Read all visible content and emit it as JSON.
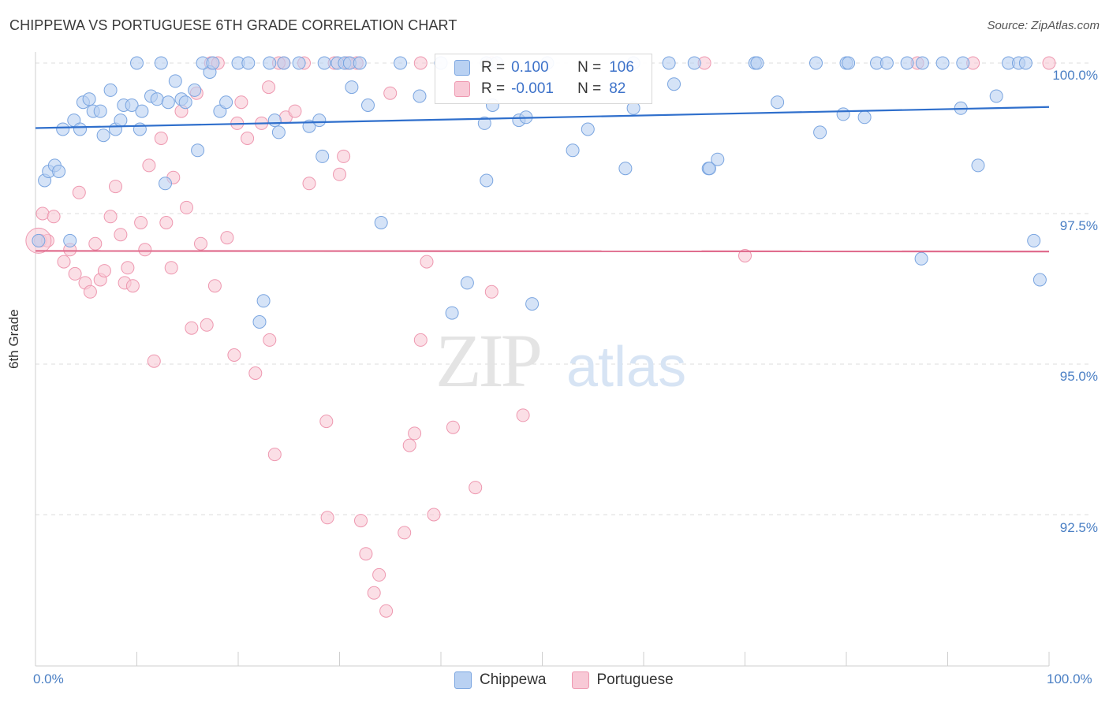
{
  "title": "CHIPPEWA VS PORTUGUESE 6TH GRADE CORRELATION CHART",
  "source": "Source: ZipAtlas.com",
  "watermark": {
    "zip": "ZIP",
    "atlas": "atlas"
  },
  "legend": {
    "r_label": "R =",
    "n_label": "N =",
    "rows": [
      {
        "name": "Chippewa",
        "r": "0.100",
        "n": "106",
        "color": "#a9c6ef"
      },
      {
        "name": "Portuguese",
        "r": "-0.001",
        "n": "82",
        "color": "#f5b8c8"
      }
    ]
  },
  "colors": {
    "chippewa_fill": "#b9d1f2",
    "chippewa_stroke": "#7aa5e0",
    "chippewa_line": "#2f6fcc",
    "portuguese_fill": "#f8c9d6",
    "portuguese_stroke": "#ee98b0",
    "portuguese_line": "#e06d8e",
    "tick_text": "#4a7fc4",
    "grid": "#dcdcdc"
  },
  "chart_data": {
    "type": "scatter",
    "title": "CHIPPEWA VS PORTUGUESE 6TH GRADE CORRELATION CHART",
    "xlabel": "",
    "ylabel": "6th Grade",
    "xlim": [
      0,
      100
    ],
    "ylim": [
      90.5,
      100.4
    ],
    "x_tick_labels": [
      "0.0%",
      "100.0%"
    ],
    "y_ticks": [
      {
        "value": 100.0,
        "label": "100.0%"
      },
      {
        "value": 97.5,
        "label": "97.5%"
      },
      {
        "value": 95.0,
        "label": "95.0%"
      },
      {
        "value": 92.5,
        "label": "92.5%"
      }
    ],
    "grid": "horizontal dashed",
    "legend_position": "top-center",
    "series": [
      {
        "name": "Chippewa",
        "trend": [
          [
            0,
            98.92
          ],
          [
            100,
            99.27
          ]
        ],
        "points": [
          [
            0.3,
            97.05
          ],
          [
            0.9,
            98.05
          ],
          [
            1.3,
            98.2
          ],
          [
            1.9,
            98.3
          ],
          [
            2.3,
            98.2
          ],
          [
            2.7,
            98.9
          ],
          [
            3.4,
            97.05
          ],
          [
            3.8,
            99.05
          ],
          [
            4.4,
            98.9
          ],
          [
            4.7,
            99.35
          ],
          [
            5.3,
            99.4
          ],
          [
            5.7,
            99.2
          ],
          [
            6.4,
            99.2
          ],
          [
            6.7,
            98.8
          ],
          [
            7.4,
            99.55
          ],
          [
            7.9,
            98.9
          ],
          [
            8.4,
            99.05
          ],
          [
            8.7,
            99.3
          ],
          [
            9.5,
            99.3
          ],
          [
            10.3,
            98.9
          ],
          [
            10.5,
            99.2
          ],
          [
            11.4,
            99.45
          ],
          [
            12.0,
            99.4
          ],
          [
            12.8,
            98.0
          ],
          [
            13.1,
            99.35
          ],
          [
            13.8,
            99.7
          ],
          [
            14.4,
            99.4
          ],
          [
            14.8,
            99.35
          ],
          [
            15.7,
            99.55
          ],
          [
            16.0,
            98.55
          ],
          [
            17.2,
            99.85
          ],
          [
            18.2,
            99.2
          ],
          [
            18.8,
            99.35
          ],
          [
            22.5,
            96.05
          ],
          [
            22.1,
            95.7
          ],
          [
            23.6,
            99.05
          ],
          [
            24.0,
            98.85
          ],
          [
            27.0,
            98.95
          ],
          [
            28.0,
            99.05
          ],
          [
            28.3,
            98.45
          ],
          [
            31.2,
            99.6
          ],
          [
            32.8,
            99.3
          ],
          [
            34.1,
            97.35
          ],
          [
            37.9,
            99.45
          ],
          [
            41.1,
            95.85
          ],
          [
            42.6,
            96.35
          ],
          [
            44.3,
            99.0
          ],
          [
            44.5,
            98.05
          ],
          [
            45.1,
            99.3
          ],
          [
            47.7,
            99.05
          ],
          [
            48.4,
            99.1
          ],
          [
            49.0,
            96.0
          ],
          [
            53.0,
            98.55
          ],
          [
            54.5,
            98.9
          ],
          [
            58.2,
            98.25
          ],
          [
            59.0,
            99.25
          ],
          [
            63.0,
            99.65
          ],
          [
            66.4,
            98.25
          ],
          [
            66.5,
            98.25
          ],
          [
            67.3,
            98.4
          ],
          [
            73.2,
            99.35
          ],
          [
            77.4,
            98.85
          ],
          [
            79.7,
            99.15
          ],
          [
            81.8,
            99.1
          ],
          [
            87.4,
            96.75
          ],
          [
            91.3,
            99.25
          ],
          [
            93.0,
            98.3
          ],
          [
            94.8,
            99.45
          ],
          [
            98.5,
            97.05
          ],
          [
            99.1,
            96.4
          ],
          [
            10.0,
            100.0
          ],
          [
            12.4,
            100.0
          ],
          [
            16.5,
            100.0
          ],
          [
            17.5,
            100.0
          ],
          [
            20.0,
            100.0
          ],
          [
            21.0,
            100.0
          ],
          [
            23.1,
            100.0
          ],
          [
            24.5,
            100.0
          ],
          [
            26.0,
            100.0
          ],
          [
            28.5,
            100.0
          ],
          [
            29.8,
            100.0
          ],
          [
            30.5,
            100.0
          ],
          [
            31.0,
            100.0
          ],
          [
            32.0,
            100.0
          ],
          [
            36.0,
            100.0
          ],
          [
            40.0,
            100.0
          ],
          [
            44.5,
            100.0
          ],
          [
            45.5,
            100.0
          ],
          [
            50.5,
            100.0
          ],
          [
            59.0,
            100.0
          ],
          [
            62.5,
            100.0
          ],
          [
            65.0,
            100.0
          ],
          [
            71.0,
            100.0
          ],
          [
            71.2,
            100.0
          ],
          [
            77.0,
            100.0
          ],
          [
            80.0,
            100.0
          ],
          [
            80.2,
            100.0
          ],
          [
            83.0,
            100.0
          ],
          [
            84.0,
            100.0
          ],
          [
            86.0,
            100.0
          ],
          [
            87.5,
            100.0
          ],
          [
            89.5,
            100.0
          ],
          [
            91.5,
            100.0
          ],
          [
            96.0,
            100.0
          ],
          [
            97.0,
            100.0
          ],
          [
            97.7,
            100.0
          ]
        ]
      },
      {
        "name": "Portuguese",
        "trend": [
          [
            0,
            96.88
          ],
          [
            100,
            96.87
          ]
        ],
        "points": [
          [
            0.5,
            97.05
          ],
          [
            0.7,
            97.5
          ],
          [
            1.2,
            97.05
          ],
          [
            1.8,
            97.45
          ],
          [
            2.8,
            96.7
          ],
          [
            3.4,
            96.9
          ],
          [
            3.9,
            96.5
          ],
          [
            4.3,
            97.85
          ],
          [
            4.9,
            96.35
          ],
          [
            5.4,
            96.2
          ],
          [
            5.9,
            97.0
          ],
          [
            6.4,
            96.4
          ],
          [
            6.8,
            96.55
          ],
          [
            7.4,
            97.45
          ],
          [
            7.9,
            97.95
          ],
          [
            8.4,
            97.15
          ],
          [
            8.8,
            96.35
          ],
          [
            9.1,
            96.6
          ],
          [
            9.6,
            96.3
          ],
          [
            10.4,
            97.35
          ],
          [
            10.8,
            96.9
          ],
          [
            11.2,
            98.3
          ],
          [
            11.7,
            95.05
          ],
          [
            12.4,
            98.75
          ],
          [
            12.9,
            97.35
          ],
          [
            13.4,
            96.6
          ],
          [
            13.6,
            98.1
          ],
          [
            14.4,
            99.2
          ],
          [
            14.9,
            97.6
          ],
          [
            15.4,
            95.6
          ],
          [
            15.9,
            99.5
          ],
          [
            16.3,
            97.0
          ],
          [
            16.9,
            95.65
          ],
          [
            17.7,
            96.3
          ],
          [
            18.9,
            97.1
          ],
          [
            19.6,
            95.15
          ],
          [
            19.9,
            99.0
          ],
          [
            20.3,
            99.35
          ],
          [
            20.9,
            98.75
          ],
          [
            21.7,
            94.85
          ],
          [
            22.3,
            99.0
          ],
          [
            23.0,
            99.6
          ],
          [
            23.1,
            95.4
          ],
          [
            23.6,
            93.5
          ],
          [
            24.7,
            99.1
          ],
          [
            25.6,
            99.2
          ],
          [
            27.0,
            98.0
          ],
          [
            28.7,
            94.05
          ],
          [
            28.8,
            92.45
          ],
          [
            30.0,
            98.15
          ],
          [
            30.4,
            98.45
          ],
          [
            32.1,
            92.4
          ],
          [
            32.6,
            91.85
          ],
          [
            33.4,
            91.2
          ],
          [
            33.9,
            91.5
          ],
          [
            34.6,
            90.9
          ],
          [
            35.0,
            99.5
          ],
          [
            36.4,
            92.2
          ],
          [
            36.9,
            93.65
          ],
          [
            37.4,
            93.85
          ],
          [
            38.0,
            95.4
          ],
          [
            38.6,
            96.7
          ],
          [
            39.3,
            92.5
          ],
          [
            41.2,
            93.95
          ],
          [
            43.4,
            92.95
          ],
          [
            45.0,
            96.2
          ],
          [
            48.1,
            94.15
          ],
          [
            70.0,
            96.8
          ],
          [
            17.3,
            100.0
          ],
          [
            18.0,
            100.0
          ],
          [
            24.5,
            100.0
          ],
          [
            26.5,
            100.0
          ],
          [
            29.5,
            100.0
          ],
          [
            31.7,
            100.0
          ],
          [
            38.0,
            100.0
          ],
          [
            45.0,
            100.0
          ],
          [
            66.0,
            100.0
          ],
          [
            87.0,
            100.0
          ],
          [
            92.5,
            100.0
          ],
          [
            100.0,
            100.0
          ],
          [
            24.0,
            100.0
          ],
          [
            30.8,
            100.0
          ]
        ]
      }
    ]
  },
  "y_axis_label": "6th Grade",
  "x_tick_labels": {
    "left": "0.0%",
    "right": "100.0%"
  }
}
